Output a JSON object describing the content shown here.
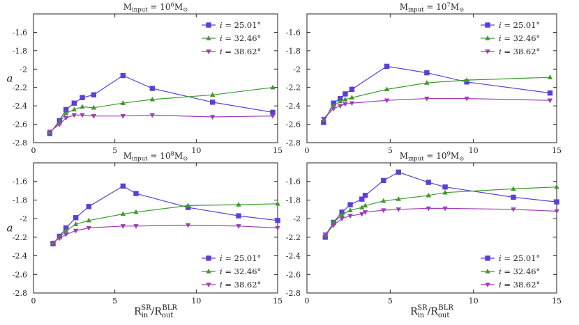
{
  "chart_data": [
    {
      "type": "line",
      "title": "M_input = 10^6 M_sun",
      "title_parts": {
        "prefix": "M",
        "sub": "input",
        "eq": " = 10",
        "exp": "6",
        "unit": "M",
        "unit_sub": "⊙"
      },
      "ylabel": "a",
      "xlabel": "R_in^SR / R_out^BLR",
      "show_xlabel": false,
      "xlim": [
        0,
        15
      ],
      "ylim": [
        -2.8,
        -1.4
      ],
      "xticks": [
        0,
        5,
        10,
        15
      ],
      "yticks": [
        -2.8,
        -2.6,
        -2.4,
        -2.2,
        -2.0,
        -1.8,
        -1.6
      ],
      "ytick_labels": [
        "-2.8",
        "-2.6",
        "-2.4",
        "-2.2",
        "-2",
        "-1.8",
        "-1.6"
      ],
      "legend_position": "top-right",
      "series": [
        {
          "name": "i = 25.01°",
          "color": "#5b3fd6",
          "marker": "square",
          "x": [
            1.0,
            1.6,
            2.0,
            2.5,
            3.0,
            3.7,
            5.5,
            7.3,
            11.0,
            14.7
          ],
          "y": [
            -2.7,
            -2.56,
            -2.44,
            -2.37,
            -2.31,
            -2.28,
            -2.07,
            -2.21,
            -2.36,
            -2.47
          ]
        },
        {
          "name": "i = 32.46°",
          "color": "#3d9a2c",
          "marker": "triangle-up",
          "x": [
            1.0,
            1.6,
            2.0,
            2.5,
            3.0,
            3.7,
            5.5,
            7.3,
            11.0,
            14.7
          ],
          "y": [
            -2.69,
            -2.58,
            -2.48,
            -2.44,
            -2.41,
            -2.42,
            -2.37,
            -2.33,
            -2.28,
            -2.2
          ]
        },
        {
          "name": "i = 38.62°",
          "color": "#9b3fb5",
          "marker": "triangle-down",
          "x": [
            1.0,
            1.6,
            2.0,
            2.5,
            3.0,
            3.7,
            5.5,
            7.3,
            11.0,
            14.7
          ],
          "y": [
            -2.68,
            -2.6,
            -2.53,
            -2.5,
            -2.5,
            -2.51,
            -2.51,
            -2.5,
            -2.52,
            -2.51
          ]
        }
      ]
    },
    {
      "type": "line",
      "title": "M_input = 10^7 M_sun",
      "title_parts": {
        "prefix": "M",
        "sub": "input",
        "eq": " = 10",
        "exp": "7",
        "unit": "M",
        "unit_sub": "⊙"
      },
      "ylabel": "",
      "xlabel": "R_in^SR / R_out^BLR",
      "show_xlabel": false,
      "xlim": [
        0,
        15
      ],
      "ylim": [
        -2.8,
        -1.4
      ],
      "xticks": [
        0,
        5,
        10,
        15
      ],
      "yticks": [
        -2.8,
        -2.6,
        -2.4,
        -2.2,
        -2.0,
        -1.8,
        -1.6
      ],
      "ytick_labels": [
        "-2.8",
        "-2.6",
        "-2.4",
        "-2.2",
        "-2",
        "-1.8",
        "-1.6"
      ],
      "legend_position": "top-right",
      "series": [
        {
          "name": "i = 25.01°",
          "color": "#5b3fd6",
          "marker": "square",
          "x": [
            1.0,
            1.6,
            2.0,
            2.3,
            2.7,
            4.8,
            7.2,
            9.6,
            14.6
          ],
          "y": [
            -2.58,
            -2.37,
            -2.32,
            -2.27,
            -2.22,
            -1.97,
            -2.04,
            -2.14,
            -2.26
          ]
        },
        {
          "name": "i = 32.46°",
          "color": "#3d9a2c",
          "marker": "triangle-up",
          "x": [
            1.0,
            1.6,
            2.0,
            2.3,
            2.7,
            4.8,
            7.2,
            9.6,
            14.6
          ],
          "y": [
            -2.55,
            -2.4,
            -2.35,
            -2.33,
            -2.31,
            -2.22,
            -2.15,
            -2.12,
            -2.09
          ]
        },
        {
          "name": "i = 38.62°",
          "color": "#9b3fb5",
          "marker": "triangle-down",
          "x": [
            1.0,
            1.6,
            2.0,
            2.3,
            2.7,
            4.8,
            7.2,
            9.6,
            14.6
          ],
          "y": [
            -2.54,
            -2.43,
            -2.4,
            -2.38,
            -2.37,
            -2.34,
            -2.32,
            -2.32,
            -2.34
          ]
        }
      ]
    },
    {
      "type": "line",
      "title": "M_input = 10^8 M_sun",
      "title_parts": {
        "prefix": "M",
        "sub": "input",
        "eq": " = 10",
        "exp": "8",
        "unit": "M",
        "unit_sub": "⊙"
      },
      "ylabel": "a",
      "xlabel": "R_in^SR / R_out^BLR",
      "show_xlabel": true,
      "xlim": [
        0,
        15
      ],
      "ylim": [
        -2.8,
        -1.4
      ],
      "xticks": [
        0,
        5,
        10,
        15
      ],
      "yticks": [
        -2.8,
        -2.6,
        -2.4,
        -2.2,
        -2.0,
        -1.8,
        -1.6
      ],
      "ytick_labels": [
        "-2.8",
        "-2.6",
        "-2.4",
        "-2.2",
        "-2",
        "-1.8",
        "-1.6"
      ],
      "legend_position": "bottom-right",
      "series": [
        {
          "name": "i = 25.01°",
          "color": "#5b3fd6",
          "marker": "square",
          "x": [
            1.2,
            1.6,
            2.0,
            2.6,
            3.4,
            5.5,
            6.3,
            9.5,
            12.6,
            15.0
          ],
          "y": [
            -2.27,
            -2.19,
            -2.1,
            -1.99,
            -1.87,
            -1.65,
            -1.73,
            -1.88,
            -1.97,
            -2.02
          ]
        },
        {
          "name": "i = 32.46°",
          "color": "#3d9a2c",
          "marker": "triangle-up",
          "x": [
            1.2,
            1.6,
            2.0,
            2.6,
            3.4,
            5.5,
            6.3,
            9.5,
            12.6,
            15.0
          ],
          "y": [
            -2.26,
            -2.2,
            -2.13,
            -2.06,
            -2.02,
            -1.95,
            -1.93,
            -1.86,
            -1.85,
            -1.84
          ]
        },
        {
          "name": "i = 38.62°",
          "color": "#9b3fb5",
          "marker": "triangle-down",
          "x": [
            1.2,
            1.6,
            2.0,
            2.6,
            3.4,
            5.5,
            6.3,
            9.5,
            12.6,
            15.0
          ],
          "y": [
            -2.26,
            -2.21,
            -2.17,
            -2.13,
            -2.1,
            -2.08,
            -2.08,
            -2.07,
            -2.08,
            -2.1
          ]
        }
      ]
    },
    {
      "type": "line",
      "title": "M_input = 10^9 M_sun",
      "title_parts": {
        "prefix": "M",
        "sub": "input",
        "eq": " = 10",
        "exp": "9",
        "unit": "M",
        "unit_sub": "⊙"
      },
      "ylabel": "",
      "xlabel": "R_in^SR / R_out^BLR",
      "show_xlabel": true,
      "xlim": [
        0,
        15
      ],
      "ylim": [
        -2.8,
        -1.4
      ],
      "xticks": [
        0,
        5,
        10,
        15
      ],
      "yticks": [
        -2.8,
        -2.6,
        -2.4,
        -2.2,
        -2.0,
        -1.8,
        -1.6
      ],
      "ytick_labels": [
        "-2.8",
        "-2.6",
        "-2.4",
        "-2.2",
        "-2",
        "-1.8",
        "-1.6"
      ],
      "legend_position": "bottom-right",
      "series": [
        {
          "name": "i = 25.01°",
          "color": "#5b3fd6",
          "marker": "square",
          "x": [
            1.1,
            1.6,
            2.1,
            2.6,
            3.3,
            3.5,
            4.6,
            5.5,
            7.3,
            8.3,
            12.4,
            15.0
          ],
          "y": [
            -2.2,
            -2.04,
            -1.93,
            -1.85,
            -1.79,
            -1.75,
            -1.59,
            -1.5,
            -1.61,
            -1.66,
            -1.77,
            -1.82
          ]
        },
        {
          "name": "i = 32.46°",
          "color": "#3d9a2c",
          "marker": "triangle-up",
          "x": [
            1.1,
            1.6,
            2.1,
            2.6,
            3.3,
            3.5,
            4.6,
            5.5,
            7.3,
            8.3,
            12.4,
            15.0
          ],
          "y": [
            -2.18,
            -2.04,
            -1.96,
            -1.91,
            -1.88,
            -1.86,
            -1.81,
            -1.79,
            -1.75,
            -1.72,
            -1.68,
            -1.66
          ]
        },
        {
          "name": "i = 38.62°",
          "color": "#9b3fb5",
          "marker": "triangle-down",
          "x": [
            1.1,
            1.6,
            2.1,
            2.6,
            3.3,
            3.5,
            4.6,
            5.5,
            7.3,
            8.3,
            12.4,
            15.0
          ],
          "y": [
            -2.17,
            -2.07,
            -2.0,
            -1.97,
            -1.95,
            -1.93,
            -1.91,
            -1.9,
            -1.89,
            -1.89,
            -1.9,
            -1.92
          ]
        }
      ]
    }
  ],
  "legend_symbol": "i",
  "legend_values": [
    "= 25.01°",
    "= 32.46°",
    "= 38.62°"
  ]
}
